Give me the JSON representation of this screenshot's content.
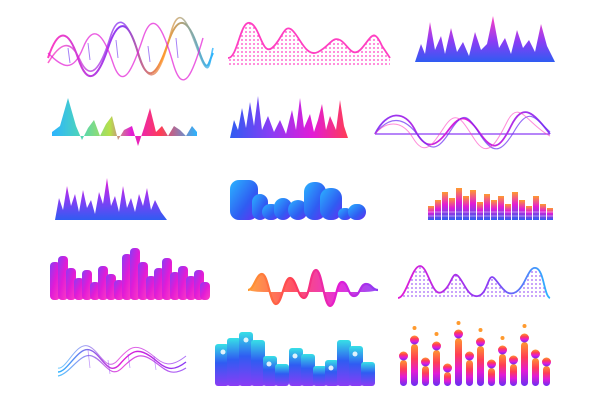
{
  "artwork": {
    "kind": "equalizer-and-sound-wave-icon-set",
    "icon_count": 15,
    "palette": {
      "pink": "#ff3fc2",
      "magenta": "#e21bd6",
      "purple": "#8a3cf5",
      "violet": "#6a2ef2",
      "blue": "#2f5cf2",
      "sky": "#2bb4ff",
      "cyan": "#37e0e6",
      "teal": "#4fd6b8",
      "lime": "#b7e04a",
      "orange": "#ff9a2e",
      "yellow": "#ffc83a",
      "red": "#ff3d55"
    },
    "icons": [
      {
        "id": "line-waves-multicolor",
        "style": "overlapping-sine-lines"
      },
      {
        "id": "dotted-pink-wave",
        "style": "line-with-dotted-fill"
      },
      {
        "id": "spiky-purple-equalizer",
        "style": "gradient-peaks"
      },
      {
        "id": "rainbow-triangle-wave",
        "style": "gradient-peaks"
      },
      {
        "id": "blue-pink-spikes",
        "style": "gradient-peaks"
      },
      {
        "id": "purple-line-wave",
        "style": "overlapping-sine-lines"
      },
      {
        "id": "purple-blue-spikes",
        "style": "gradient-peaks"
      },
      {
        "id": "rounded-blue-bars",
        "style": "rounded-bars"
      },
      {
        "id": "small-orange-bar-equalizer",
        "style": "striped-bars"
      },
      {
        "id": "magenta-castle-bars",
        "style": "rounded-bars"
      },
      {
        "id": "orange-purple-sine",
        "style": "filled-sine"
      },
      {
        "id": "dotted-pink-blue-wave",
        "style": "line-with-dotted-fill"
      },
      {
        "id": "thin-lines-purple-cyan",
        "style": "overlapping-sine-lines"
      },
      {
        "id": "cyan-purple-tall-bars",
        "style": "rounded-bars"
      },
      {
        "id": "lollipop-equalizer",
        "style": "dots-on-stems"
      }
    ]
  }
}
